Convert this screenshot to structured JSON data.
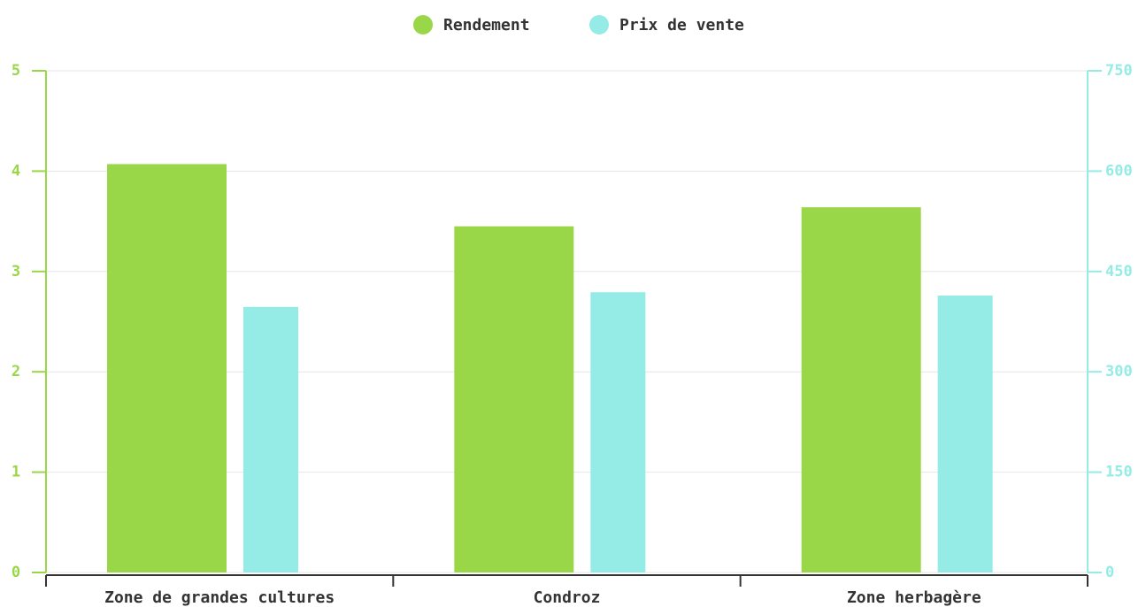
{
  "chart_data": {
    "type": "bar",
    "categories": [
      "Zone de grandes cultures",
      "Condroz",
      "Zone herbagère"
    ],
    "series": [
      {
        "name": "Rendement",
        "color": "#9ad748",
        "values": [
          4.07,
          3.45,
          3.64
        ]
      },
      {
        "name": "Prix de vente",
        "color": "#95ebe5",
        "values": [
          397,
          419,
          414
        ],
        "axis": "y2"
      }
    ],
    "ylim": [
      0,
      5
    ],
    "yticks": [
      0,
      1,
      2,
      3,
      4,
      5
    ],
    "y2lim": [
      0,
      750
    ],
    "y2ticks": [
      0,
      150,
      300,
      450,
      600,
      750
    ],
    "grid": true,
    "legend": "top"
  }
}
